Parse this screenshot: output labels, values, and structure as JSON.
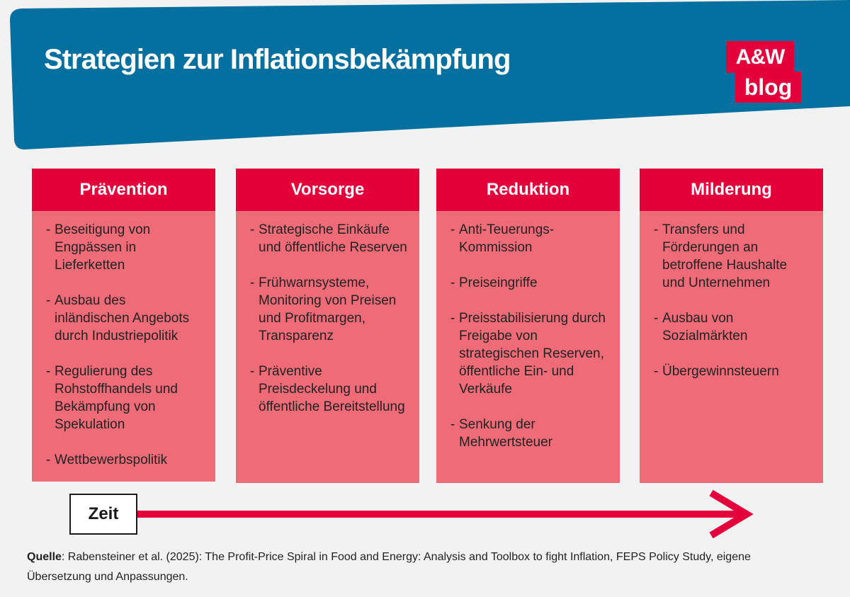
{
  "header": {
    "title": "Strategien zur Inflationsbekämpfung",
    "banner_color": "#04709f"
  },
  "logo": {
    "line1": "A&W",
    "line2": "blog",
    "color": "#e4003a"
  },
  "columns": [
    {
      "heading": "Prävention",
      "items": [
        "Beseitigung von Engpässen in Lieferketten",
        "Ausbau des inländischen Angebots durch Industriepolitik",
        "Regulierung des Rohstoffhandels und Bekämpfung von Spekulation",
        "Wettbewerbspolitik"
      ]
    },
    {
      "heading": "Vorsorge",
      "items": [
        "Strategische Einkäufe und öffentliche Reserven",
        "Frühwarnsysteme, Monitoring von Preisen und Profitmargen, Transparenz",
        "Präventive Preisdeckelung und öffentliche Bereitstellung"
      ]
    },
    {
      "heading": "Reduktion",
      "items": [
        "Anti-Teuerungs-Kommission",
        "Preiseingriffe",
        "Preisstabilisierung durch Freigabe von strategischen Reserven, öffentliche Ein- und Verkäufe",
        "Senkung der Mehrwertsteuer"
      ]
    },
    {
      "heading": "Milderung",
      "items": [
        "Transfers und Förderungen an betroffene Haushalte und Unternehmen",
        "Ausbau von Sozialmärkten",
        "Übergewinnsteuern"
      ]
    }
  ],
  "dash": "-",
  "timeline": {
    "label": "Zeit"
  },
  "source": {
    "label": "Quelle",
    "text": ": Rabensteiner et al. (2025): The Profit-Price Spiral in Food and Energy: Analysis and Toolbox to fight Inflation, FEPS Policy Study, eigene Übersetzung und Anpassungen."
  },
  "colors": {
    "header_red": "#e4003a",
    "body_pink": "#ef6b77",
    "background": "#f2f2f2"
  }
}
